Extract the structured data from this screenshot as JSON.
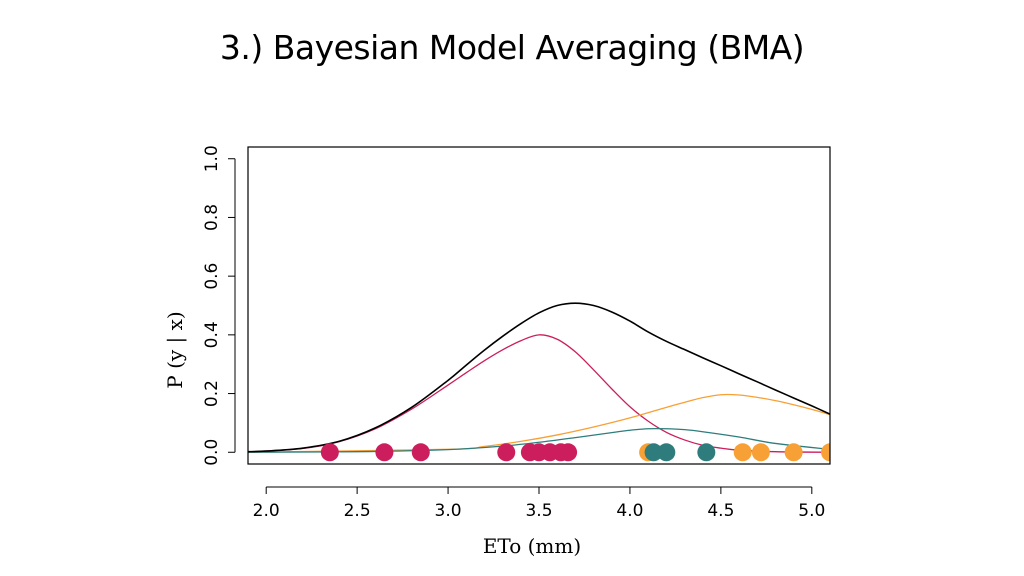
{
  "slide": {
    "title": "3.) Bayesian Model Averaging (BMA)"
  },
  "chart_data": {
    "type": "line",
    "title": "",
    "xlabel": "ETo (mm)",
    "ylabel": "P (y | x)",
    "xlim": [
      1.9,
      5.1
    ],
    "ylim": [
      -0.04,
      1.04
    ],
    "xticks": [
      "2.0",
      "2.5",
      "3.0",
      "3.5",
      "4.0",
      "4.5",
      "5.0"
    ],
    "yticks": [
      "0.0",
      "0.2",
      "0.4",
      "0.6",
      "0.8",
      "1.0"
    ],
    "grid": false,
    "legend": "none",
    "series": [
      {
        "color": "#cc1e5c",
        "x": [
          1.9,
          2.2,
          2.4,
          2.6,
          2.8,
          3.0,
          3.1,
          3.2,
          3.3,
          3.4,
          3.5,
          3.6,
          3.7,
          3.8,
          3.9,
          4.0,
          4.1,
          4.2,
          4.3,
          4.4,
          4.5,
          4.6,
          4.8,
          5.1
        ],
        "y": [
          0.001,
          0.013,
          0.036,
          0.08,
          0.147,
          0.229,
          0.271,
          0.312,
          0.349,
          0.38,
          0.4,
          0.385,
          0.342,
          0.281,
          0.216,
          0.155,
          0.106,
          0.068,
          0.042,
          0.024,
          0.014,
          0.007,
          0.002,
          0.0
        ]
      },
      {
        "color": "#f7a035",
        "x": [
          1.9,
          3.0,
          3.2,
          3.4,
          3.6,
          3.8,
          4.0,
          4.2,
          4.3,
          4.4,
          4.5,
          4.6,
          4.7,
          4.8,
          4.9,
          5.0,
          5.1
        ],
        "y": [
          0.0,
          0.01,
          0.02,
          0.037,
          0.059,
          0.086,
          0.117,
          0.153,
          0.17,
          0.186,
          0.196,
          0.195,
          0.187,
          0.176,
          0.162,
          0.146,
          0.128
        ]
      },
      {
        "color": "#2e7d7c",
        "x": [
          1.9,
          2.5,
          3.0,
          3.3,
          3.5,
          3.7,
          3.9,
          4.0,
          4.1,
          4.2,
          4.3,
          4.4,
          4.6,
          4.8,
          5.1
        ],
        "y": [
          0.0,
          0.002,
          0.009,
          0.021,
          0.034,
          0.05,
          0.067,
          0.075,
          0.08,
          0.08,
          0.077,
          0.07,
          0.052,
          0.03,
          0.01
        ]
      },
      {
        "color": "#000000",
        "x": [
          1.9,
          2.0,
          2.2,
          2.4,
          2.6,
          2.8,
          3.0,
          3.1,
          3.2,
          3.3,
          3.4,
          3.5,
          3.6,
          3.7,
          3.8,
          3.9,
          4.0,
          4.1,
          4.2,
          4.3,
          4.4,
          4.5,
          4.6,
          4.7,
          4.8,
          4.9,
          5.0,
          5.1
        ],
        "y": [
          0.002,
          0.004,
          0.014,
          0.037,
          0.083,
          0.153,
          0.245,
          0.297,
          0.348,
          0.395,
          0.438,
          0.475,
          0.5,
          0.508,
          0.5,
          0.478,
          0.447,
          0.41,
          0.378,
          0.35,
          0.322,
          0.295,
          0.267,
          0.24,
          0.212,
          0.185,
          0.158,
          0.13
        ]
      }
    ],
    "points": [
      {
        "color": "#cc1e5c",
        "x": [
          2.35,
          2.65,
          2.85,
          3.32,
          3.45,
          3.5,
          3.56,
          3.62,
          3.66
        ]
      },
      {
        "color": "#f7a035",
        "x": [
          4.1,
          4.62,
          4.72,
          4.9,
          5.1
        ]
      },
      {
        "color": "#2e7d7c",
        "x": [
          4.13,
          4.2,
          4.42
        ]
      }
    ]
  }
}
